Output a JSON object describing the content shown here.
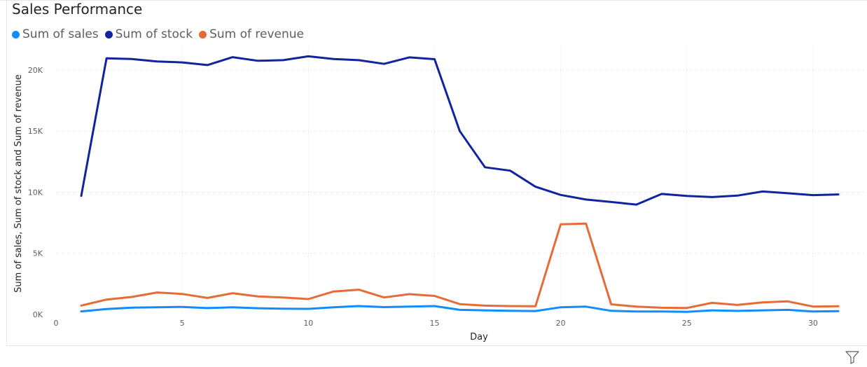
{
  "chart_data": {
    "type": "line",
    "title": "Sales Performance",
    "xlabel": "Day",
    "ylabel": "Sum of sales, Sum of stock and Sum of revenue",
    "xlim": [
      0,
      32
    ],
    "ylim": [
      0,
      22000
    ],
    "x_ticks": [
      0,
      5,
      10,
      15,
      20,
      25,
      30
    ],
    "y_ticks": [
      0,
      5000,
      10000,
      15000,
      20000
    ],
    "y_tick_labels": [
      "0K",
      "5K",
      "10K",
      "15K",
      "20K"
    ],
    "grid": true,
    "legend_position": "top-left",
    "x": [
      1,
      2,
      3,
      4,
      5,
      6,
      7,
      8,
      9,
      10,
      11,
      12,
      13,
      14,
      15,
      16,
      17,
      18,
      19,
      20,
      21,
      22,
      23,
      24,
      25,
      26,
      27,
      28,
      29,
      30,
      31
    ],
    "series": [
      {
        "name": "Sum of sales",
        "color": "#118DFF",
        "values": [
          250,
          440,
          560,
          590,
          620,
          520,
          590,
          510,
          470,
          460,
          590,
          690,
          600,
          640,
          690,
          380,
          340,
          300,
          280,
          590,
          640,
          300,
          240,
          240,
          220,
          340,
          290,
          340,
          380,
          240,
          270
        ]
      },
      {
        "name": "Sum of stock",
        "color": "#12239E",
        "values": [
          9700,
          20950,
          20900,
          20700,
          20620,
          20400,
          21050,
          20750,
          20800,
          21120,
          20900,
          20800,
          20500,
          21030,
          20880,
          15000,
          12040,
          11760,
          10450,
          9780,
          9400,
          9200,
          8990,
          9860,
          9700,
          9600,
          9720,
          10060,
          9920,
          9760,
          9820
        ]
      },
      {
        "name": "Sum of revenue",
        "color": "#E66C37",
        "values": [
          730,
          1220,
          1430,
          1800,
          1680,
          1350,
          1740,
          1480,
          1390,
          1260,
          1880,
          2030,
          1390,
          1660,
          1520,
          850,
          720,
          690,
          670,
          7380,
          7430,
          830,
          640,
          550,
          530,
          950,
          780,
          990,
          1070,
          650,
          670
        ]
      }
    ]
  },
  "icons": {
    "filter": "filter-icon"
  }
}
